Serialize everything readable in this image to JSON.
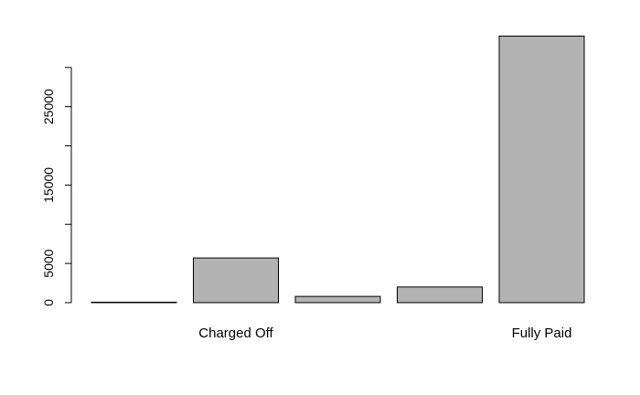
{
  "chart_data": {
    "type": "bar",
    "categories": [
      "",
      "Charged Off",
      "",
      "",
      "Fully Paid"
    ],
    "values": [
      50,
      5700,
      800,
      2000,
      34000
    ],
    "ylim": [
      0,
      34000
    ],
    "yticks": [
      0,
      5000,
      10000,
      15000,
      20000,
      25000,
      30000
    ],
    "ytick_labels": [
      "0",
      "5000",
      "",
      "15000",
      "",
      "25000",
      ""
    ],
    "bar_color": "#b3b3b3",
    "grid": false,
    "legend": "none"
  }
}
